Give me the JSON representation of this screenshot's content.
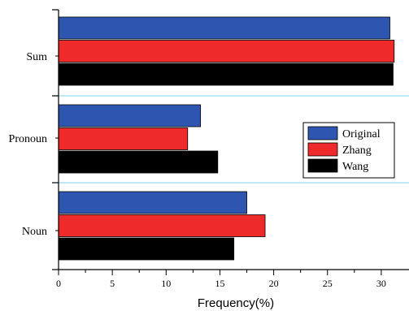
{
  "chart_data": {
    "type": "bar",
    "orientation": "horizontal",
    "categories": [
      "Noun",
      "Pronoun",
      "Sum"
    ],
    "series": [
      {
        "name": "Original",
        "color": "#2e56b0",
        "values": [
          17.5,
          13.2,
          30.8
        ]
      },
      {
        "name": "Zhang",
        "color": "#ee2a2a",
        "values": [
          19.2,
          12.0,
          31.2
        ]
      },
      {
        "name": "Wang",
        "color": "#000000",
        "values": [
          16.3,
          14.8,
          31.1
        ]
      }
    ],
    "xlabel": "Frequency(%)",
    "xlim": [
      0,
      32
    ],
    "xticks": [
      0,
      5,
      10,
      15,
      20,
      25,
      30
    ],
    "category_separators": true,
    "separator_color": "#7fd4ea",
    "legend_position": "center-right"
  }
}
